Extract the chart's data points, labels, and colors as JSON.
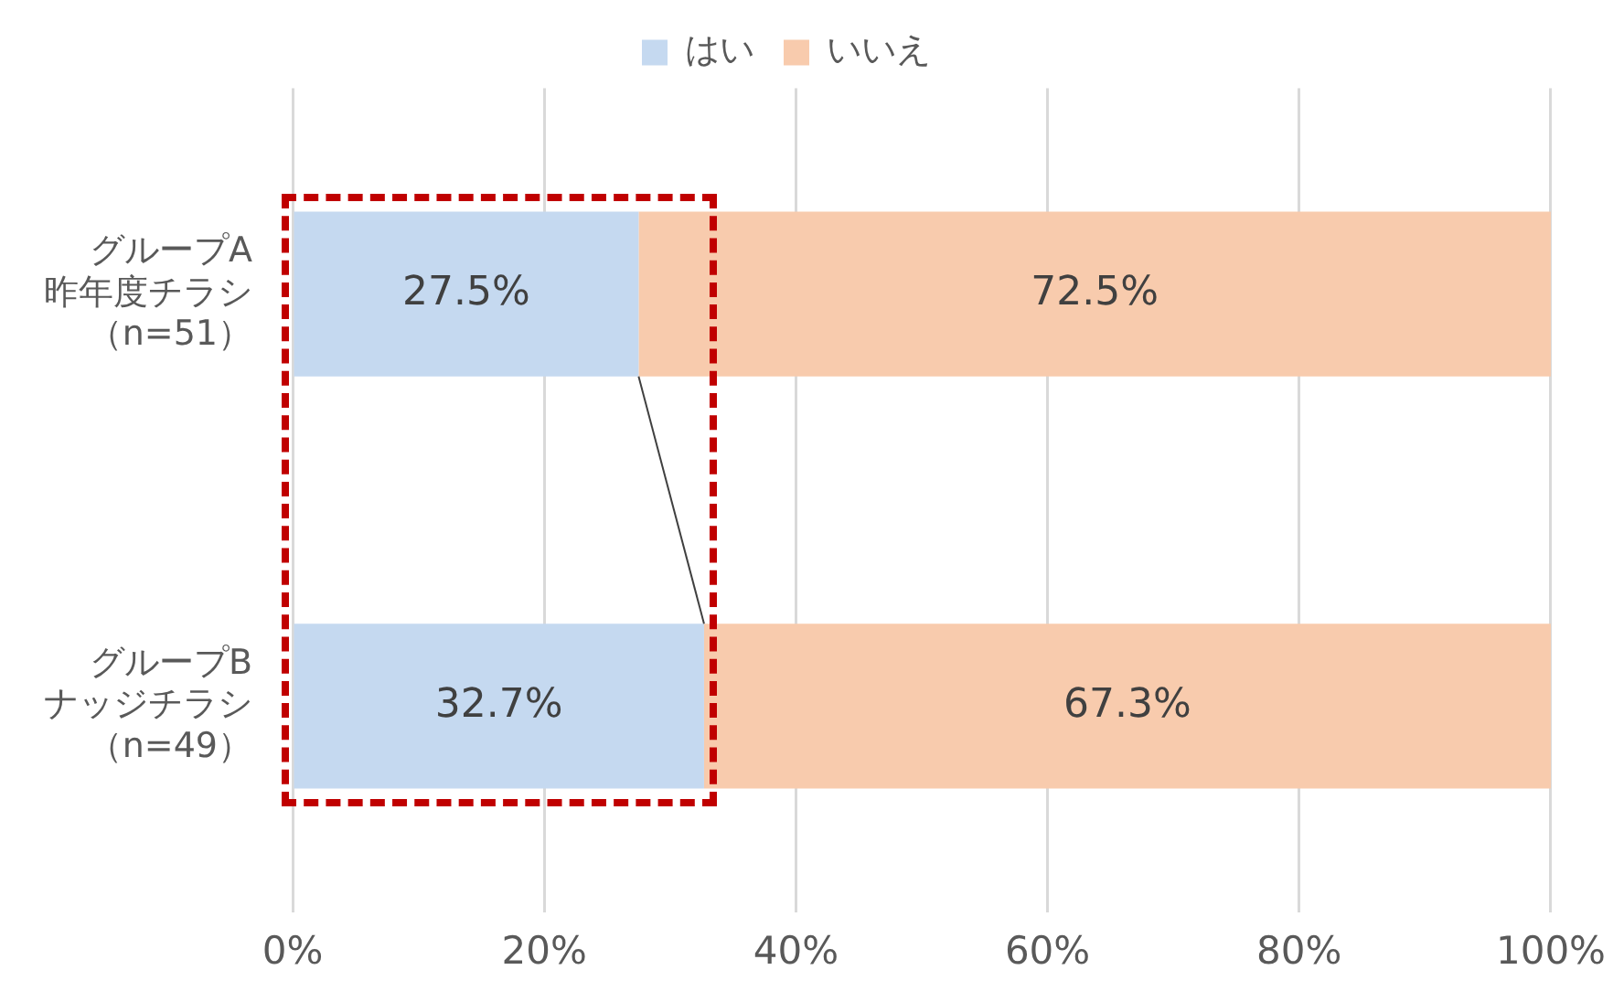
{
  "chart_data": {
    "type": "bar",
    "orientation": "horizontal",
    "stacked": true,
    "categories": [
      "グループA昨年度チラシ（n=51）",
      "グループBナッジチラシ（n=49）"
    ],
    "series": [
      {
        "name": "はい",
        "color": "#c5d9f0",
        "values": [
          27.5,
          32.7
        ],
        "value_labels": [
          "27.5%",
          "32.7%"
        ]
      },
      {
        "name": "いいえ",
        "color": "#f8cbad",
        "values": [
          72.5,
          67.3
        ],
        "value_labels": [
          "72.5%",
          "67.3%"
        ]
      }
    ],
    "xlim": [
      0,
      100
    ],
    "xticks": [
      {
        "value": 0,
        "label": "0%"
      },
      {
        "value": 20,
        "label": "20%"
      },
      {
        "value": 40,
        "label": "40%"
      },
      {
        "value": 60,
        "label": "60%"
      },
      {
        "value": 80,
        "label": "80%"
      },
      {
        "value": 100,
        "label": "100%"
      }
    ],
    "grid": "x",
    "legend": "top"
  }
}
